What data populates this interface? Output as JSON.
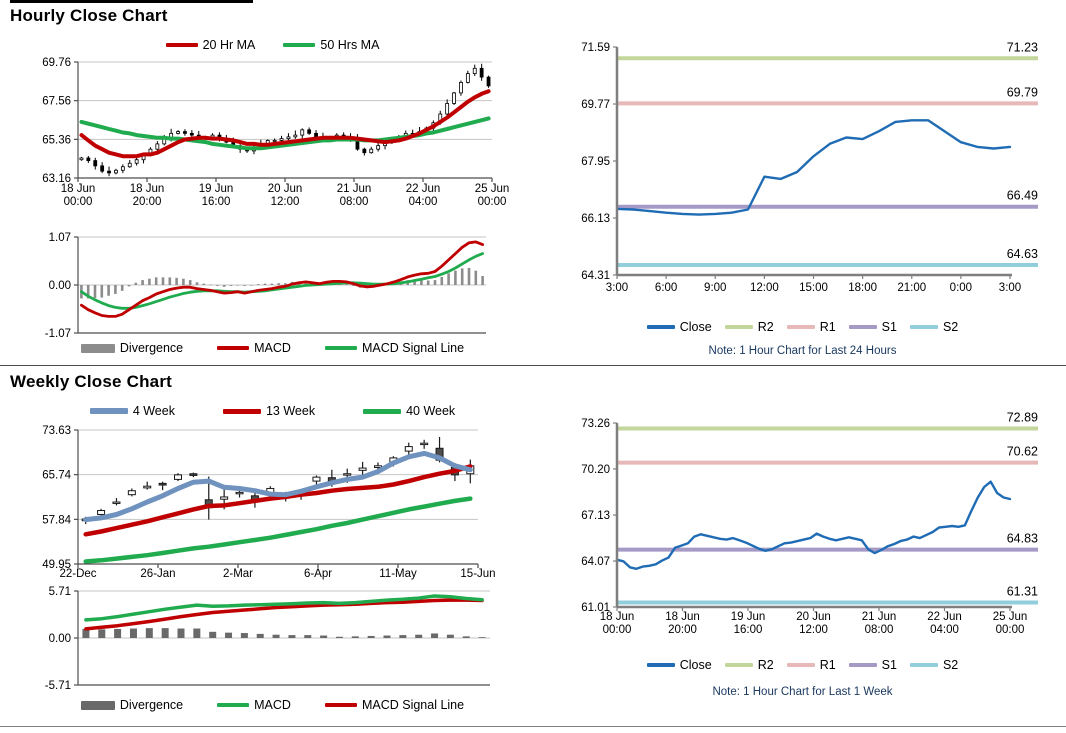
{
  "titles": {
    "hourly": "Hourly Close Chart",
    "weekly": "Weekly Close Chart"
  },
  "colors": {
    "ma_red": "#C00000",
    "ma_green": "#21AB4F",
    "ma_blue": "#7092BE",
    "close_blue": "#1F6CB5",
    "r2_green": "#C3D69B",
    "r1_pink": "#E6B9B8",
    "s1_purple": "#A59AC6",
    "s2_cyan": "#92CDDC",
    "divergence_gray": "#8C8C8C",
    "note_text": "#17375E"
  },
  "chart_data": [
    {
      "id": "hourly-price",
      "type": "candles",
      "ylim": [
        63.16,
        69.76
      ],
      "yticks": [
        69.76,
        67.56,
        65.36,
        63.16
      ],
      "xtick_labels": [
        "18 Jun\n00:00",
        "18 Jun\n20:00",
        "19 Jun\n16:00",
        "20 Jun\n12:00",
        "21 Jun\n08:00",
        "22 Jun\n04:00",
        "25 Jun\n00:00"
      ],
      "close": [
        64.3,
        64.15,
        63.85,
        63.55,
        63.45,
        63.6,
        63.8,
        64.0,
        64.2,
        64.5,
        64.8,
        65.1,
        65.4,
        65.7,
        65.8,
        65.7,
        65.6,
        65.5,
        65.5,
        65.6,
        65.4,
        65.2,
        65.0,
        64.8,
        64.7,
        64.9,
        65.1,
        65.3,
        65.3,
        65.4,
        65.5,
        65.6,
        65.9,
        65.7,
        65.5,
        65.4,
        65.5,
        65.6,
        65.5,
        65.4,
        64.8,
        64.6,
        64.8,
        65.0,
        65.2,
        65.4,
        65.5,
        65.7,
        65.6,
        65.8,
        66.0,
        66.3,
        66.8,
        67.4,
        68.0,
        68.6,
        69.1,
        69.4,
        68.9,
        68.4
      ],
      "series": [
        {
          "name": "20 Hr MA",
          "color": "#C00000",
          "values": [
            65.6,
            65.3,
            65.0,
            64.8,
            64.6,
            64.5,
            64.4,
            64.4,
            64.4,
            64.5,
            64.5,
            64.6,
            64.8,
            65.0,
            65.2,
            65.35,
            65.4,
            65.45,
            65.45,
            65.4,
            65.4,
            65.35,
            65.3,
            65.2,
            65.1,
            65.1,
            65.05,
            65.05,
            65.1,
            65.15,
            65.2,
            65.25,
            65.3,
            65.35,
            65.4,
            65.45,
            65.45,
            65.45,
            65.45,
            65.45,
            65.4,
            65.35,
            65.3,
            65.25,
            65.2,
            65.25,
            65.3,
            65.4,
            65.55,
            65.7,
            65.9,
            66.1,
            66.35,
            66.6,
            66.9,
            67.2,
            67.5,
            67.75,
            67.95,
            68.1
          ]
        },
        {
          "name": "50 Hrs MA",
          "color": "#21AB4F",
          "values": [
            66.35,
            66.25,
            66.15,
            66.05,
            65.95,
            65.85,
            65.75,
            65.7,
            65.6,
            65.55,
            65.5,
            65.45,
            65.45,
            65.4,
            65.4,
            65.35,
            65.3,
            65.25,
            65.2,
            65.1,
            65.05,
            65.0,
            64.95,
            64.9,
            64.85,
            64.85,
            64.85,
            64.9,
            64.95,
            65.0,
            65.05,
            65.1,
            65.15,
            65.2,
            65.25,
            65.3,
            65.3,
            65.35,
            65.35,
            65.35,
            65.35,
            65.3,
            65.3,
            65.3,
            65.35,
            65.4,
            65.45,
            65.5,
            65.55,
            65.6,
            65.7,
            65.75,
            65.85,
            65.95,
            66.05,
            66.15,
            66.25,
            66.35,
            66.45,
            66.55
          ]
        }
      ]
    },
    {
      "id": "hourly-macd",
      "type": "macd",
      "ylim": [
        -1.07,
        1.07
      ],
      "yticks": [
        1.07,
        0,
        -1.07
      ],
      "bars_name": "Divergence",
      "bars_color": "#8C8C8C",
      "series": [
        {
          "name": "MACD",
          "color": "#C00000",
          "values": [
            -0.45,
            -0.55,
            -0.62,
            -0.68,
            -0.7,
            -0.7,
            -0.65,
            -0.55,
            -0.45,
            -0.35,
            -0.28,
            -0.2,
            -0.15,
            -0.1,
            -0.07,
            -0.05,
            -0.05,
            -0.08,
            -0.1,
            -0.12,
            -0.15,
            -0.18,
            -0.17,
            -0.15,
            -0.18,
            -0.15,
            -0.12,
            -0.1,
            -0.08,
            -0.05,
            -0.03,
            0.02,
            0.05,
            0.07,
            0.05,
            0.03,
            0.06,
            0.08,
            0.08,
            0.07,
            0.03,
            -0.02,
            -0.04,
            -0.03,
            0.0,
            0.03,
            0.07,
            0.12,
            0.18,
            0.22,
            0.25,
            0.26,
            0.3,
            0.42,
            0.56,
            0.7,
            0.84,
            0.94,
            0.96,
            0.9
          ]
        },
        {
          "name": "MACD Signal Line",
          "color": "#21AB4F",
          "values": [
            -0.15,
            -0.25,
            -0.33,
            -0.4,
            -0.46,
            -0.5,
            -0.52,
            -0.52,
            -0.5,
            -0.46,
            -0.42,
            -0.37,
            -0.32,
            -0.27,
            -0.23,
            -0.19,
            -0.16,
            -0.14,
            -0.13,
            -0.13,
            -0.13,
            -0.14,
            -0.15,
            -0.15,
            -0.16,
            -0.15,
            -0.14,
            -0.13,
            -0.11,
            -0.09,
            -0.07,
            -0.05,
            -0.03,
            -0.01,
            0.0,
            0.01,
            0.02,
            0.03,
            0.04,
            0.05,
            0.05,
            0.04,
            0.03,
            0.02,
            0.02,
            0.02,
            0.03,
            0.05,
            0.07,
            0.1,
            0.13,
            0.16,
            0.19,
            0.24,
            0.3,
            0.38,
            0.47,
            0.56,
            0.64,
            0.7
          ]
        }
      ]
    },
    {
      "id": "hourly-pivot",
      "type": "pivot",
      "ylim": [
        64.31,
        71.59
      ],
      "yticks": [
        71.59,
        69.77,
        67.95,
        66.13,
        64.31
      ],
      "xtick_labels": [
        "3:00",
        "6:00",
        "9:00",
        "12:00",
        "15:00",
        "18:00",
        "21:00",
        "0:00",
        "3:00"
      ],
      "close_name": "Close",
      "close_color": "#1F6CB5",
      "close": [
        66.42,
        66.4,
        66.35,
        66.3,
        66.26,
        66.24,
        66.26,
        66.3,
        66.4,
        67.45,
        67.38,
        67.6,
        68.1,
        68.5,
        68.7,
        68.65,
        68.9,
        69.2,
        69.25,
        69.25,
        68.9,
        68.55,
        68.4,
        68.35,
        68.4
      ],
      "levels": [
        {
          "name": "R2",
          "value": 71.23,
          "color": "#C3D69B"
        },
        {
          "name": "R1",
          "value": 69.79,
          "color": "#E6B9B8"
        },
        {
          "name": "S1",
          "value": 66.49,
          "color": "#A59AC6"
        },
        {
          "name": "S2",
          "value": 64.63,
          "color": "#92CDDC"
        }
      ],
      "note": "Note: 1 Hour Chart for Last 24 Hours"
    },
    {
      "id": "weekly-price",
      "type": "ohlc",
      "ylim": [
        49.95,
        73.63
      ],
      "yticks": [
        73.63,
        65.74,
        57.84,
        49.95
      ],
      "xtick_labels": [
        "22-Dec",
        "26-Jan",
        "2-Mar",
        "6-Apr",
        "11-May",
        "15-Jun"
      ],
      "candles": [
        [
          57.6,
          58.3,
          57.0,
          57.9
        ],
        [
          58.7,
          59.7,
          58.5,
          59.4
        ],
        [
          60.7,
          61.6,
          60.3,
          60.9
        ],
        [
          62.2,
          63.3,
          61.9,
          62.9
        ],
        [
          63.4,
          64.5,
          63.1,
          63.7
        ],
        [
          64.2,
          64.5,
          63.0,
          63.9
        ],
        [
          64.9,
          66.0,
          64.6,
          65.7
        ],
        [
          65.9,
          66.1,
          65.3,
          65.6
        ],
        [
          61.3,
          65.4,
          57.8,
          59.9
        ],
        [
          61.4,
          63.4,
          59.6,
          61.8
        ],
        [
          62.4,
          63.1,
          61.7,
          62.6
        ],
        [
          62.0,
          62.6,
          59.9,
          61.3
        ],
        [
          62.3,
          63.7,
          61.5,
          63.3
        ],
        [
          61.6,
          62.7,
          61.0,
          62.3
        ],
        [
          62.0,
          63.0,
          61.3,
          62.6
        ],
        [
          64.6,
          65.6,
          63.4,
          65.3
        ],
        [
          65.2,
          66.6,
          63.6,
          64.6
        ],
        [
          65.7,
          66.8,
          64.3,
          65.9
        ],
        [
          66.5,
          68.0,
          65.4,
          66.9
        ],
        [
          67.0,
          67.9,
          66.1,
          67.3
        ],
        [
          67.7,
          69.0,
          67.2,
          68.7
        ],
        [
          69.9,
          71.4,
          69.3,
          70.7
        ],
        [
          71.1,
          71.9,
          70.3,
          71.3
        ],
        [
          70.4,
          72.4,
          67.9,
          68.3
        ],
        [
          67.0,
          67.8,
          64.6,
          65.7
        ],
        [
          65.9,
          68.4,
          64.2,
          67.3
        ]
      ],
      "series": [
        {
          "name": "4 Week",
          "color": "#7092BE",
          "values": [
            57.8,
            58.1,
            58.7,
            59.7,
            60.9,
            62.0,
            63.3,
            64.4,
            64.6,
            63.5,
            63.3,
            62.9,
            62.3,
            62.2,
            62.8,
            63.6,
            64.3,
            64.9,
            65.3,
            66.3,
            67.8,
            68.9,
            69.5,
            68.7,
            67.3,
            66.6
          ]
        },
        {
          "name": "13 Week",
          "color": "#C00000",
          "values": [
            55.2,
            55.7,
            56.3,
            56.9,
            57.5,
            58.2,
            58.9,
            59.6,
            60.2,
            60.3,
            60.7,
            61.1,
            61.5,
            61.8,
            62.2,
            62.5,
            62.9,
            63.2,
            63.4,
            63.6,
            64.0,
            64.6,
            65.3,
            65.9,
            66.4,
            67.2
          ]
        },
        {
          "name": "40 Week",
          "color": "#21AB4F",
          "values": [
            50.4,
            50.6,
            50.9,
            51.2,
            51.5,
            51.9,
            52.3,
            52.7,
            53.0,
            53.4,
            53.8,
            54.2,
            54.6,
            55.1,
            55.6,
            56.1,
            56.7,
            57.2,
            57.8,
            58.4,
            59.0,
            59.6,
            60.1,
            60.6,
            61.1,
            61.5
          ]
        }
      ]
    },
    {
      "id": "weekly-macd",
      "type": "macd",
      "ylim": [
        -5.71,
        5.71
      ],
      "yticks": [
        5.71,
        0,
        -5.71
      ],
      "bars_name": "Divergence",
      "bars_color": "#696969",
      "series": [
        {
          "name": "MACD",
          "color": "#21AB4F",
          "values": [
            2.2,
            2.35,
            2.6,
            2.9,
            3.2,
            3.5,
            3.75,
            4.0,
            3.85,
            3.9,
            4.0,
            4.05,
            4.1,
            4.15,
            4.25,
            4.3,
            4.2,
            4.3,
            4.45,
            4.6,
            4.7,
            4.85,
            5.1,
            5.0,
            4.8,
            4.65
          ]
        },
        {
          "name": "MACD Signal Line",
          "color": "#C00000",
          "values": [
            1.1,
            1.3,
            1.5,
            1.75,
            2.0,
            2.3,
            2.6,
            2.85,
            3.1,
            3.25,
            3.4,
            3.55,
            3.7,
            3.8,
            3.9,
            4.0,
            4.05,
            4.1,
            4.2,
            4.3,
            4.35,
            4.45,
            4.55,
            4.6,
            4.6,
            4.55
          ]
        }
      ]
    },
    {
      "id": "weekly-pivot",
      "type": "pivot",
      "ylim": [
        61.01,
        73.26
      ],
      "yticks": [
        73.26,
        70.2,
        67.13,
        64.07,
        61.01
      ],
      "xtick_labels": [
        "18 Jun\n00:00",
        "18 Jun\n20:00",
        "19 Jun\n16:00",
        "20 Jun\n12:00",
        "21 Jun\n08:00",
        "22 Jun\n04:00",
        "25 Jun\n00:00"
      ],
      "close_name": "Close",
      "close_color": "#1F6CB5",
      "close": [
        64.15,
        64.05,
        63.65,
        63.55,
        63.7,
        63.75,
        63.85,
        64.1,
        64.3,
        64.95,
        65.1,
        65.25,
        65.7,
        65.85,
        65.75,
        65.65,
        65.55,
        65.5,
        65.6,
        65.45,
        65.3,
        65.1,
        64.9,
        64.75,
        64.85,
        65.05,
        65.25,
        65.3,
        65.4,
        65.5,
        65.6,
        65.9,
        65.7,
        65.55,
        65.45,
        65.55,
        65.65,
        65.55,
        65.45,
        64.85,
        64.6,
        64.8,
        65.05,
        65.2,
        65.4,
        65.5,
        65.7,
        65.6,
        65.8,
        66.0,
        66.3,
        66.35,
        66.4,
        66.35,
        66.45,
        67.4,
        68.3,
        69.0,
        69.35,
        68.6,
        68.3,
        68.2
      ],
      "levels": [
        {
          "name": "R2",
          "value": 72.89,
          "color": "#C3D69B"
        },
        {
          "name": "R1",
          "value": 70.62,
          "color": "#E6B9B8"
        },
        {
          "name": "S1",
          "value": 64.83,
          "color": "#A59AC6"
        },
        {
          "name": "S2",
          "value": 61.31,
          "color": "#92CDDC"
        }
      ],
      "note": "Note: 1 Hour Chart for Last 1 Week"
    }
  ]
}
